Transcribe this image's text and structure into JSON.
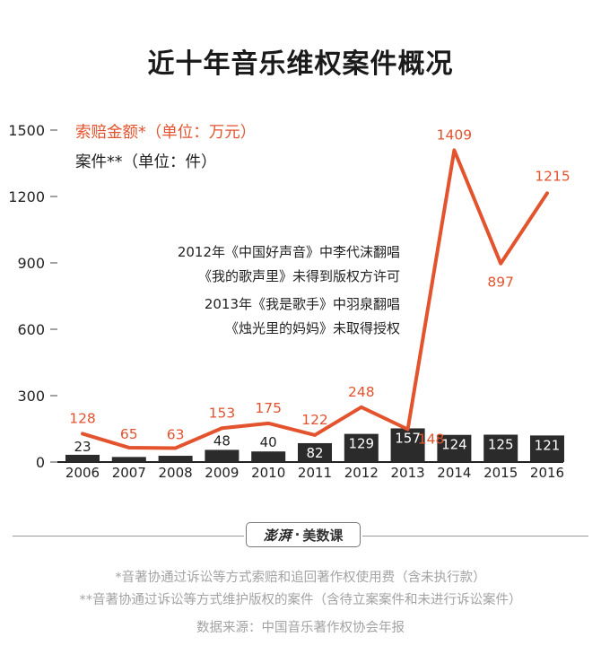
{
  "title": "近十年音乐维权案件概况",
  "chart_data": {
    "type": "bar+line",
    "categories": [
      "2006",
      "2007",
      "2008",
      "2009",
      "2010",
      "2011",
      "2012",
      "2013",
      "2014",
      "2015",
      "2016"
    ],
    "series": [
      {
        "name": "索赔金额*（单位：万元）",
        "type": "line",
        "color": "#e2532e",
        "values": [
          128,
          65,
          63,
          153,
          175,
          122,
          248,
          148,
          1409,
          897,
          1215
        ]
      },
      {
        "name": "案件**（单位：件）",
        "type": "bar",
        "color": "#2b2b2b",
        "values": [
          23,
          12,
          18,
          48,
          40,
          82,
          129,
          157,
          124,
          125,
          121
        ]
      }
    ],
    "bar_labels": [
      "23",
      "",
      "",
      "48",
      "40",
      "82",
      "129",
      "157",
      "124",
      "125",
      "121"
    ],
    "line_labels": [
      "128",
      "65",
      "63",
      "153",
      "175",
      "122",
      "248",
      "148",
      "1409",
      "897",
      "1215"
    ],
    "yticks": [
      "0",
      "300",
      "600",
      "900",
      "1200",
      "1500"
    ],
    "ylim": [
      0,
      1500
    ],
    "legend": {
      "position": "top-left",
      "line_label": "索赔金额*（单位：万元）",
      "bar_label": "案件**（单位：件）"
    },
    "annotations": [
      "2012年《中国好声音》中李代沫翻唱",
      "《我的歌声里》未得到版权方许可",
      "2013年《我是歌手》中羽泉翻唱",
      "《烛光里的妈妈》未取得授权"
    ]
  },
  "brand": {
    "logo": "澎湃",
    "separator": "·",
    "name": "美数课"
  },
  "footnotes": {
    "note1": "*音著协通过诉讼等方式索赔和追回著作权使用费（含未执行款）",
    "note2": "**音著协通过诉讼等方式维护版权的案件（含待立案案件和未进行诉讼案件）",
    "source": "数据来源：中国音乐著作权协会年报"
  }
}
